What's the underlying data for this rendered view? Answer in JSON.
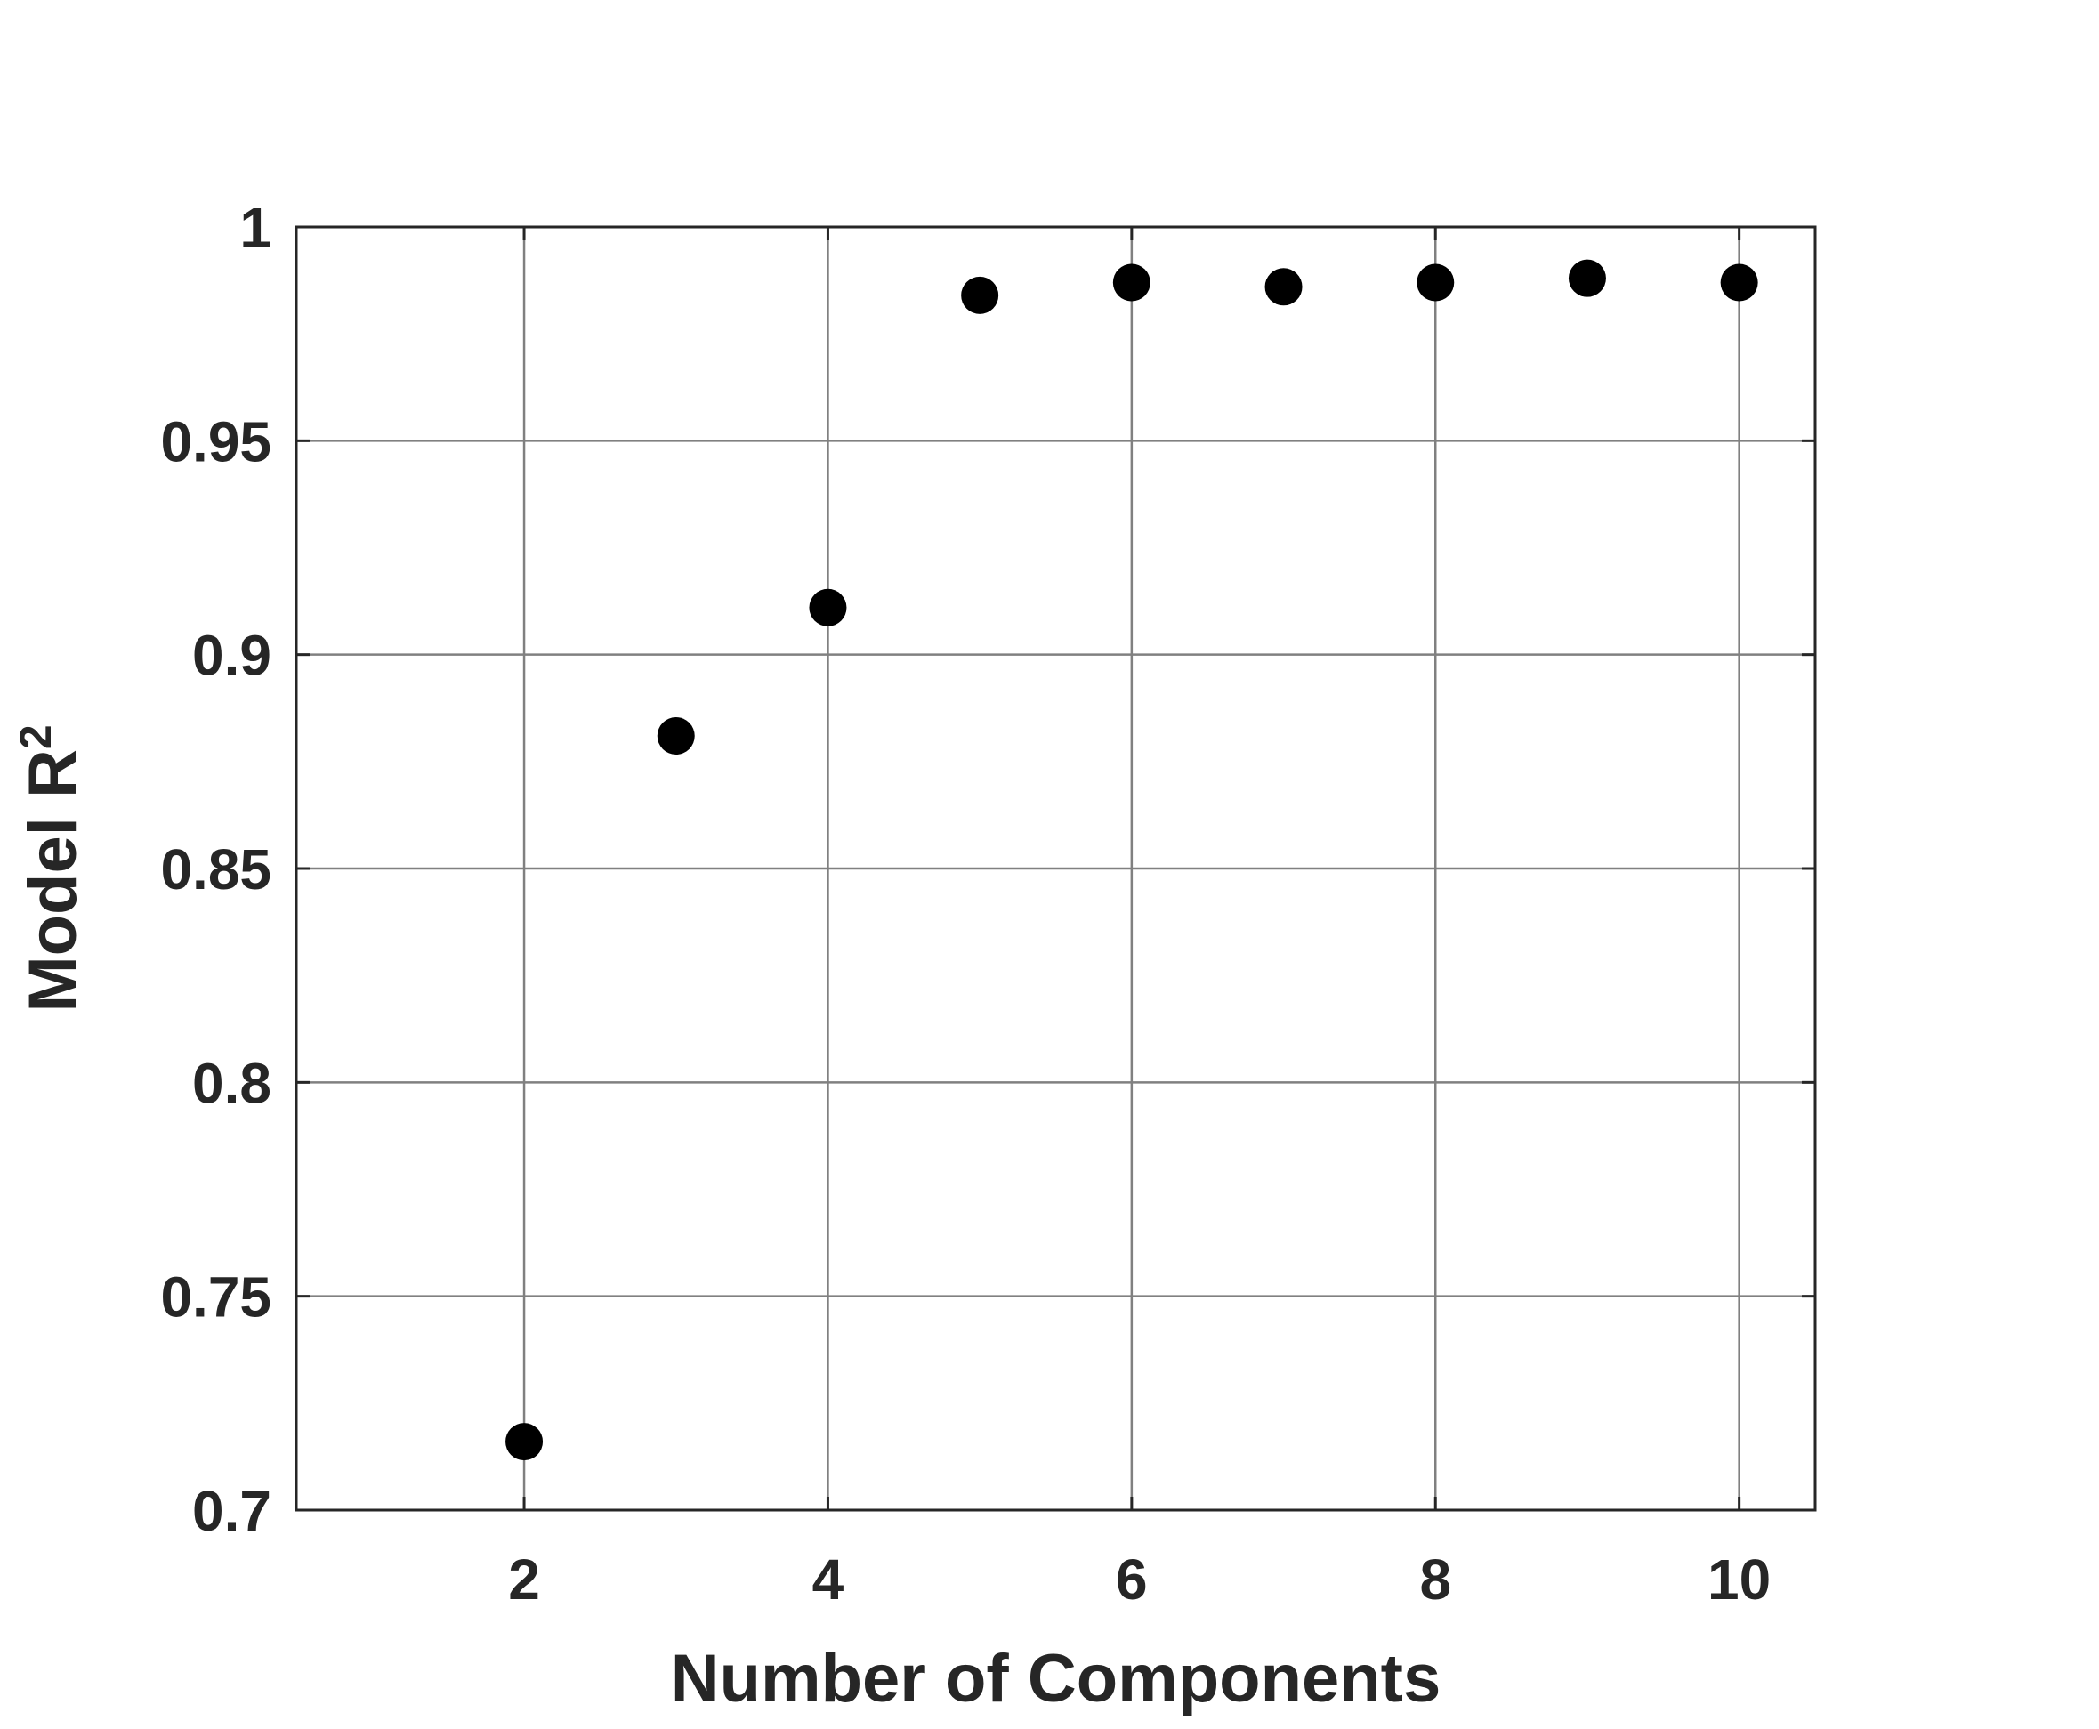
{
  "chart_data": {
    "type": "scatter",
    "title": "",
    "xlabel": "Number of Components",
    "ylabel_main": "Model R",
    "ylabel_sup": "2",
    "xlim": [
      0.5,
      10.5
    ],
    "ylim": [
      0.7,
      1.0
    ],
    "xticks": [
      2,
      4,
      6,
      8,
      10
    ],
    "xtick_labels": [
      "2",
      "4",
      "6",
      "8",
      "10"
    ],
    "yticks": [
      0.7,
      0.75,
      0.8,
      0.85,
      0.9,
      0.95,
      1.0
    ],
    "ytick_labels": [
      "0.7",
      "0.75",
      "0.8",
      "0.85",
      "0.9",
      "0.95",
      "1"
    ],
    "grid": true,
    "marker_color": "#000000",
    "series": [
      {
        "x": [
          2,
          3,
          4,
          5,
          6,
          7,
          8,
          9,
          10
        ],
        "y": [
          0.716,
          0.881,
          0.911,
          0.984,
          0.987,
          0.986,
          0.987,
          0.988,
          0.987
        ]
      }
    ]
  }
}
